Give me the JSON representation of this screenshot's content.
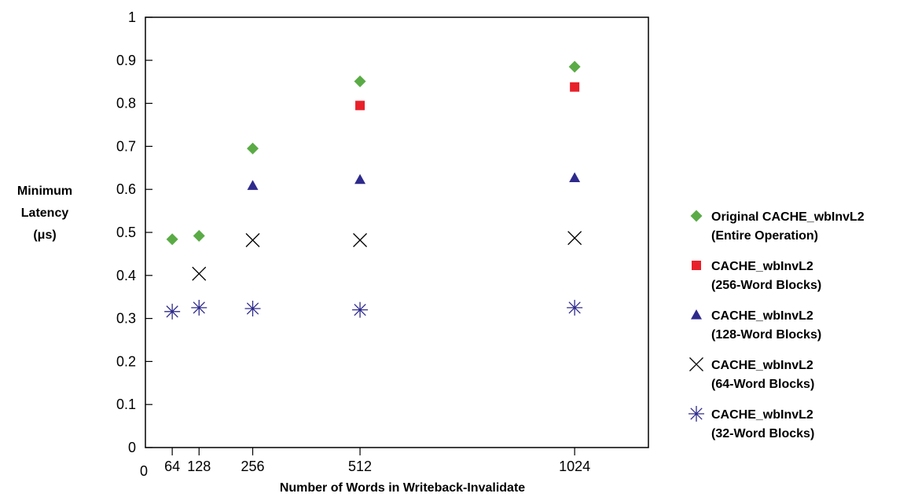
{
  "chart_data": {
    "type": "scatter",
    "title": "",
    "xlabel": "Number of Words in Writeback-Invalidate",
    "ylabel": [
      "Minimum",
      "Latency",
      "(μs)"
    ],
    "x_origin_label": "0",
    "xlim": [
      0,
      1200
    ],
    "ylim": [
      0,
      1
    ],
    "xticks": [
      64,
      128,
      256,
      512,
      1024
    ],
    "yticks": [
      0,
      0.1,
      0.2,
      0.3,
      0.4,
      0.5,
      0.6,
      0.7,
      0.8,
      0.9,
      1
    ],
    "grid": false,
    "legend_position": "right",
    "series": [
      {
        "name": [
          "Original CACHE_wbInvL2",
          "(Entire Operation)"
        ],
        "marker": "diamond",
        "color": "#5aab46",
        "x": [
          64,
          128,
          256,
          512,
          1024
        ],
        "y": [
          0.484,
          0.492,
          0.695,
          0.851,
          0.885
        ]
      },
      {
        "name": [
          "CACHE_wbInvL2",
          "(256-Word Blocks)"
        ],
        "marker": "square",
        "color": "#e8202a",
        "x": [
          512,
          1024
        ],
        "y": [
          0.795,
          0.838
        ]
      },
      {
        "name": [
          "CACHE_wbInvL2",
          "(128-Word Blocks)"
        ],
        "marker": "triangle",
        "color": "#2e2a8c",
        "x": [
          256,
          512,
          1024
        ],
        "y": [
          0.609,
          0.623,
          0.627
        ]
      },
      {
        "name": [
          "CACHE_wbInvL2",
          "(64-Word Blocks)"
        ],
        "marker": "x",
        "color": "#000000",
        "x": [
          128,
          256,
          512,
          1024
        ],
        "y": [
          0.404,
          0.482,
          0.482,
          0.487
        ]
      },
      {
        "name": [
          "CACHE_wbInvL2",
          "(32-Word Blocks)"
        ],
        "marker": "asterisk",
        "color": "#2e2a8c",
        "x": [
          64,
          128,
          256,
          512,
          1024
        ],
        "y": [
          0.316,
          0.325,
          0.323,
          0.32,
          0.325
        ]
      }
    ]
  }
}
